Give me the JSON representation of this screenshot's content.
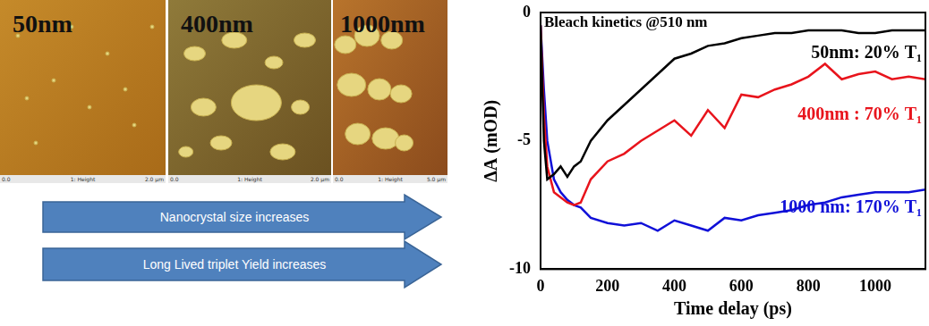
{
  "panels": [
    {
      "label": "50nm",
      "axis_start": "0.0",
      "channel": "1: Height",
      "scan_size": "2.0 µm"
    },
    {
      "label": "400nm",
      "axis_start": "0.0",
      "channel": "1: Height",
      "scan_size": "2.0 µm"
    },
    {
      "label": "1000nm",
      "axis_start": "0.0",
      "channel": "1: Height",
      "scan_size": "5.0 µm"
    }
  ],
  "arrows": [
    "Nanocrystal size increases",
    "Long Lived triplet Yield increases"
  ],
  "chart_data": {
    "type": "line",
    "annotations": [
      "Bleach kinetics @510 nm"
    ],
    "x_label": "Time delay (ps)",
    "y_label": "ΔA (mOD)",
    "x": [
      0,
      10,
      20,
      40,
      60,
      80,
      100,
      120,
      150,
      200,
      250,
      300,
      350,
      400,
      450,
      500,
      550,
      600,
      650,
      700,
      750,
      800,
      850,
      900,
      950,
      1000,
      1050,
      1100,
      1150
    ],
    "series": [
      {
        "name": "50nm: 20% T₁",
        "color": "#000000",
        "values": [
          -0.5,
          -5,
          -6.5,
          -6.3,
          -6,
          -6.4,
          -6,
          -5.8,
          -5,
          -4.2,
          -3.6,
          -3,
          -2.4,
          -1.8,
          -1.6,
          -1.3,
          -1.2,
          -1,
          -0.9,
          -0.8,
          -0.8,
          -0.7,
          -0.7,
          -0.7,
          -0.8,
          -0.8,
          -0.7,
          -0.7,
          -0.7
        ]
      },
      {
        "name": "400nm : 70% T₁",
        "color": "#e8141c",
        "values": [
          -0.5,
          -4,
          -6,
          -7,
          -7.2,
          -7.4,
          -7.5,
          -7.4,
          -6.5,
          -5.8,
          -5.5,
          -5,
          -4.6,
          -4.2,
          -4.8,
          -3.8,
          -4.5,
          -3.2,
          -3.3,
          -3,
          -2.8,
          -2.5,
          -2,
          -2.6,
          -2.4,
          -2.3,
          -2.6,
          -2.5,
          -2.6
        ]
      },
      {
        "name": "1000 nm: 170% T₁",
        "color": "#1010d8",
        "values": [
          -0.5,
          -3,
          -5,
          -6.5,
          -7,
          -7.3,
          -7.5,
          -7.6,
          -8,
          -8.2,
          -8.3,
          -8.2,
          -8.5,
          -8.1,
          -8.3,
          -8.5,
          -8,
          -8.1,
          -7.9,
          -7.8,
          -7.7,
          -7.5,
          -7.4,
          -7.2,
          -7.1,
          -7,
          -7,
          -7,
          -6.9
        ]
      }
    ],
    "xlim": [
      0,
      1150
    ],
    "xticks": [
      0,
      200,
      400,
      600,
      800,
      1000
    ],
    "ylim": [
      -10,
      0
    ],
    "yticks": [
      -10,
      -5,
      0
    ],
    "grid": false
  }
}
